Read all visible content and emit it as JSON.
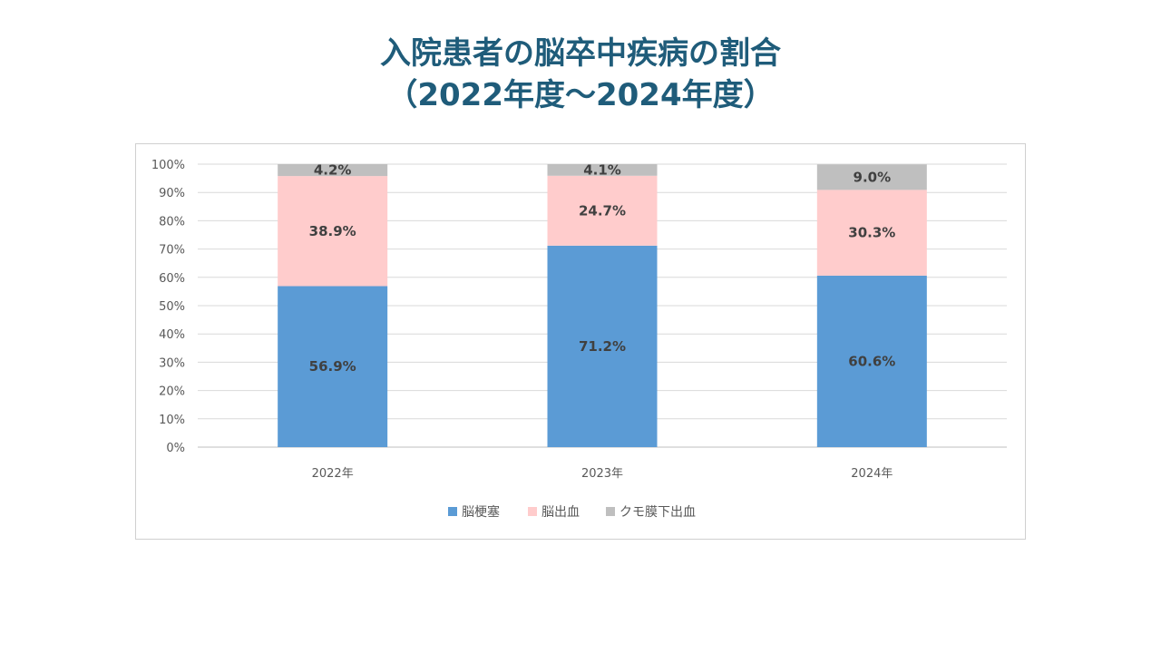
{
  "page": {
    "title_line1": "入院患者の脳卒中疾病の割合",
    "title_line2": "（2022年度～2024年度）"
  },
  "chart_data": {
    "type": "bar",
    "stacked": true,
    "percent": true,
    "categories": [
      "2022年",
      "2023年",
      "2024年"
    ],
    "series": [
      {
        "name": "脳梗塞",
        "values": [
          56.9,
          71.2,
          60.6
        ],
        "labels": [
          "56.9%",
          "71.2%",
          "60.6%"
        ],
        "color": "#5b9bd5"
      },
      {
        "name": "脳出血",
        "values": [
          38.9,
          24.7,
          30.3
        ],
        "labels": [
          "38.9%",
          "24.7%",
          "30.3%"
        ],
        "color": "#ffcccc"
      },
      {
        "name": "クモ膜下出血",
        "values": [
          4.2,
          4.1,
          9.0
        ],
        "labels": [
          "4.2%",
          "4.1%",
          "9.0%"
        ],
        "color": "#bfbfbf"
      }
    ],
    "ylim": [
      0,
      100
    ],
    "yticks": [
      "0%",
      "10%",
      "20%",
      "30%",
      "40%",
      "50%",
      "60%",
      "70%",
      "80%",
      "90%",
      "100%"
    ],
    "grid": true,
    "legend": "bottom"
  }
}
